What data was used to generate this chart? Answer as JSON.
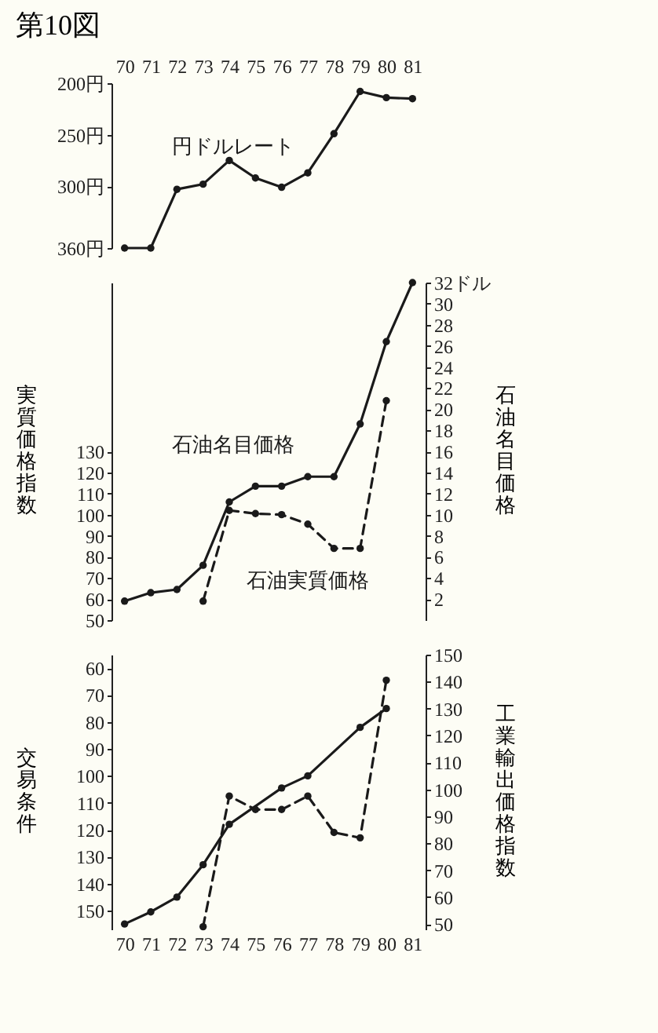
{
  "chart_data": [
    {
      "type": "line",
      "title": "第10図",
      "categories": [
        "70",
        "71",
        "72",
        "73",
        "74",
        "75",
        "76",
        "77",
        "78",
        "79",
        "80",
        "81"
      ],
      "series": [
        {
          "name": "円ドルレート",
          "color": "#1a1a1a",
          "values": [
            360,
            360,
            303,
            298,
            275,
            292,
            301,
            287,
            249,
            208,
            214,
            215
          ]
        }
      ],
      "ylim": [
        360,
        200
      ],
      "yticks": [
        {
          "value": 200,
          "label": "200円"
        },
        {
          "value": 250,
          "label": "250円"
        },
        {
          "value": 300,
          "label": "300円"
        },
        {
          "value": 360,
          "label": "360円"
        }
      ],
      "marker": "circle",
      "grid": false
    },
    {
      "type": "line",
      "categories": [
        "70",
        "71",
        "72",
        "73",
        "74",
        "75",
        "76",
        "77",
        "78",
        "79",
        "80",
        "81"
      ],
      "series": [
        {
          "name": "石油名目価格",
          "color": "#1a1a1a",
          "axis": "y2",
          "line_style": "solid",
          "values": [
            1.8,
            2.6,
            2.9,
            5.2,
            11.2,
            12.7,
            12.7,
            13.6,
            13.6,
            18.6,
            26.4,
            32
          ]
        },
        {
          "name": "石油実質価格",
          "color": "#1a1a1a",
          "line_style": "dashed",
          "values": [
            null,
            null,
            null,
            59,
            102,
            100.5,
            100,
            95.5,
            84,
            84,
            154,
            null
          ]
        }
      ],
      "ylabel": "実質価格指数",
      "y2label": "石油名目価格",
      "ylim": [
        50,
        210
      ],
      "yticks": [
        50,
        60,
        70,
        80,
        90,
        100,
        110,
        120,
        130
      ],
      "y2lim": [
        0,
        32
      ],
      "y2ticks": [
        2,
        4,
        6,
        8,
        10,
        12,
        14,
        16,
        18,
        20,
        22,
        24,
        26,
        28,
        30,
        {
          "value": 32,
          "label": "32ドル"
        }
      ],
      "tick_labels": "y",
      "marker": "circle",
      "grid": false
    },
    {
      "type": "line",
      "categories": [
        "70",
        "71",
        "72",
        "73",
        "74",
        "75",
        "76",
        "77",
        "78",
        "79",
        "80",
        "81"
      ],
      "series": [
        {
          "color": "#1a1a1a",
          "axis": "y2",
          "line_style": "solid",
          "values": [
            50,
            54.5,
            60,
            72,
            87,
            null,
            100.5,
            105,
            null,
            123,
            130,
            null
          ]
        },
        {
          "color": "#1a1a1a",
          "line_style": "dashed",
          "values": [
            null,
            null,
            null,
            156,
            107.5,
            112.5,
            112.5,
            107.5,
            121,
            123,
            64.5,
            null
          ]
        }
      ],
      "ylabel": "交易条件",
      "y2label": "工業輸出価格指数",
      "ylim": [
        157,
        55
      ],
      "yticks": [
        60,
        70,
        80,
        90,
        100,
        110,
        120,
        130,
        140,
        150
      ],
      "y2lim": [
        48,
        150
      ],
      "y2ticks": [
        50,
        60,
        70,
        80,
        90,
        100,
        110,
        120,
        130,
        140,
        150
      ],
      "marker": "circle",
      "grid": false
    }
  ]
}
